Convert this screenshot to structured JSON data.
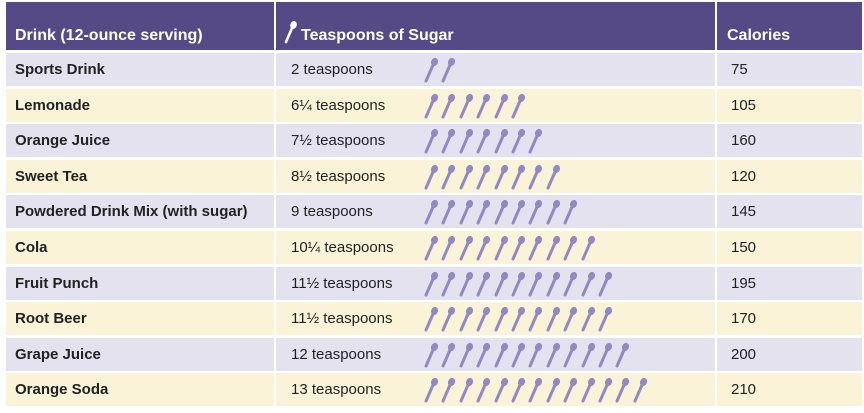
{
  "header": {
    "drink_label": "Drink (12-ounce serving)",
    "sugar_label": "Teaspoons of Sugar",
    "calories_label": "Calories",
    "spoon_icon": "teaspoon-icon"
  },
  "colors": {
    "header_bg": "#554a86",
    "row_odd_bg": "#e4e2ef",
    "row_even_bg": "#fbf3d8",
    "spoon": "#9189c3"
  },
  "rows": [
    {
      "drink": "Sports Drink",
      "sugar_text": "2 teaspoons",
      "spoons": 2,
      "calories": "75"
    },
    {
      "drink": "Lemonade",
      "sugar_text": "6¼ teaspoons",
      "spoons": 6,
      "calories": "105"
    },
    {
      "drink": "Orange Juice",
      "sugar_text": "7½ teaspoons",
      "spoons": 7,
      "calories": "160"
    },
    {
      "drink": "Sweet Tea",
      "sugar_text": "8½ teaspoons",
      "spoons": 8,
      "calories": "120"
    },
    {
      "drink": "Powdered Drink Mix (with sugar)",
      "sugar_text": "9 teaspoons",
      "spoons": 9,
      "calories": "145"
    },
    {
      "drink": "Cola",
      "sugar_text": "10¼ teaspoons",
      "spoons": 10,
      "calories": "150"
    },
    {
      "drink": "Fruit Punch",
      "sugar_text": "11½ teaspoons",
      "spoons": 11,
      "calories": "195"
    },
    {
      "drink": "Root Beer",
      "sugar_text": "11½ teaspoons",
      "spoons": 11,
      "calories": "170"
    },
    {
      "drink": "Grape Juice",
      "sugar_text": "12 teaspoons",
      "spoons": 12,
      "calories": "200"
    },
    {
      "drink": "Orange Soda",
      "sugar_text": "13 teaspoons",
      "spoons": 13,
      "calories": "210"
    }
  ]
}
